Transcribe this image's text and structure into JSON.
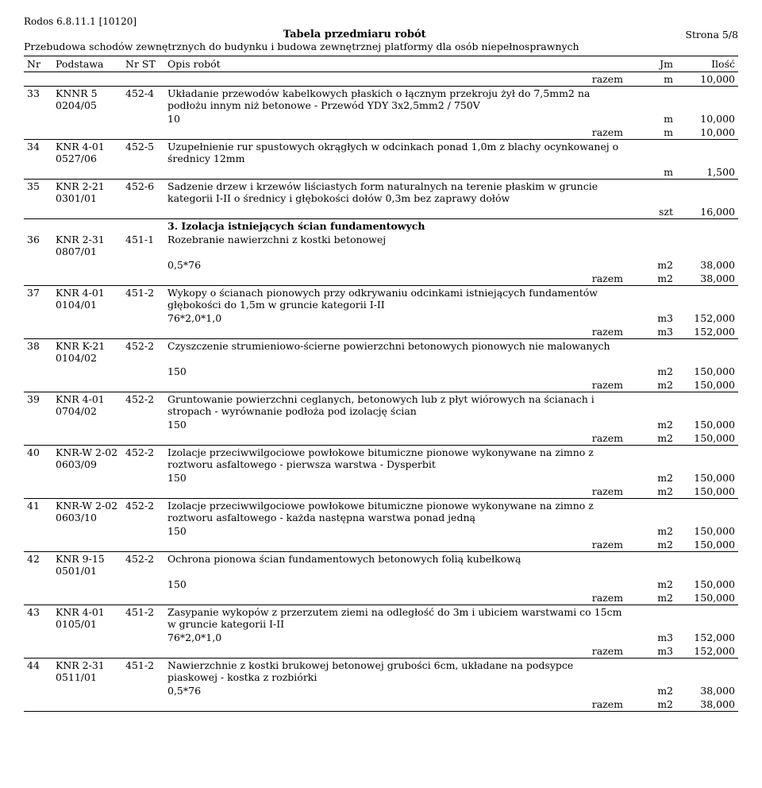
{
  "header_code": "Rodos 6.8.11.1 [10120]",
  "title": "Tabela przedmiaru robót",
  "page_label": "Strona 5/8",
  "subtitle": "Przebudowa schodów zewnętrznych do budynku i budowa zewnętrznej platformy dla osób niepełnosprawnych",
  "cols": {
    "nr": "Nr",
    "podstawa": "Podstawa",
    "st": "Nr ST",
    "opis": "Opis robót",
    "jm": "Jm",
    "ilosc": "Ilość"
  },
  "razem_label": "razem",
  "leading_razem": {
    "jm": "m",
    "qty": "10,000"
  },
  "rows": [
    {
      "nr": "33",
      "pod1": "KNNR 5",
      "pod2": "0204/05",
      "st": "452-4",
      "opis": "Układanie przewodów kabelkowych płaskich o łącznym przekroju żył do 7,5mm2 na podłożu innym niż betonowe - Przewód YDY 3x2,5mm2 / 750V",
      "calc": "10",
      "calc_jm": "m",
      "calc_qty": "10,000",
      "razem_jm": "m",
      "razem_qty": "10,000"
    },
    {
      "nr": "34",
      "pod1": "KNR 4-01",
      "pod2": "0527/06",
      "st": "452-5",
      "opis": "Uzupełnienie rur spustowych okrągłych w odcinkach ponad 1,0m z blachy ocynkowanej o średnicy 12mm",
      "only_jm": "m",
      "only_qty": "1,500"
    },
    {
      "nr": "35",
      "pod1": "KNR 2-21",
      "pod2": "0301/01",
      "st": "452-6",
      "opis": "Sadzenie drzew i krzewów liściastych form naturalnych na terenie płaskim w gruncie kategorii I-II o średnicy i głębokości dołów 0,3m bez zaprawy dołów",
      "only_jm": "szt",
      "only_qty": "16,000",
      "section_after": "3. Izolacja istniejących ścian fundamentowych"
    },
    {
      "nr": "36",
      "pod1": "KNR 2-31",
      "pod2": "0807/01",
      "st": "451-1",
      "opis": "Rozebranie nawierzchni z kostki betonowej",
      "calc": "0,5*76",
      "calc_jm": "m2",
      "calc_qty": "38,000",
      "razem_jm": "m2",
      "razem_qty": "38,000"
    },
    {
      "nr": "37",
      "pod1": "KNR 4-01",
      "pod2": "0104/01",
      "st": "451-2",
      "opis": "Wykopy o ścianach pionowych przy odkrywaniu odcinkami istniejących fundamentów głębokości do 1,5m w gruncie kategorii I-II",
      "calc": "76*2,0*1,0",
      "calc_jm": "m3",
      "calc_qty": "152,000",
      "razem_jm": "m3",
      "razem_qty": "152,000"
    },
    {
      "nr": "38",
      "pod1": "KNR K-21",
      "pod2": "0104/02",
      "st": "452-2",
      "opis": "Czyszczenie strumieniowo-ścierne powierzchni betonowych pionowych nie malowanych",
      "calc": "150",
      "calc_jm": "m2",
      "calc_qty": "150,000",
      "razem_jm": "m2",
      "razem_qty": "150,000"
    },
    {
      "nr": "39",
      "pod1": "KNR 4-01",
      "pod2": "0704/02",
      "st": "452-2",
      "opis": "Gruntowanie powierzchni ceglanych, betonowych lub z płyt wiórowych na ścianach i stropach - wyrównanie podłoża pod izolację ścian",
      "calc": "150",
      "calc_jm": "m2",
      "calc_qty": "150,000",
      "razem_jm": "m2",
      "razem_qty": "150,000"
    },
    {
      "nr": "40",
      "pod1": "KNR-W 2-02",
      "pod2": "0603/09",
      "st": "452-2",
      "opis": "Izolacje przeciwwilgociowe powłokowe bitumiczne pionowe wykonywane na zimno z roztworu asfaltowego - pierwsza warstwa - Dysperbit",
      "calc": "150",
      "calc_jm": "m2",
      "calc_qty": "150,000",
      "razem_jm": "m2",
      "razem_qty": "150,000"
    },
    {
      "nr": "41",
      "pod1": "KNR-W 2-02",
      "pod2": "0603/10",
      "st": "452-2",
      "opis": "Izolacje przeciwwilgociowe powłokowe bitumiczne pionowe wykonywane na zimno z roztworu asfaltowego - każda następna warstwa ponad jedną",
      "calc": "150",
      "calc_jm": "m2",
      "calc_qty": "150,000",
      "razem_jm": "m2",
      "razem_qty": "150,000"
    },
    {
      "nr": "42",
      "pod1": "KNR 9-15",
      "pod2": "0501/01",
      "st": "452-2",
      "opis": "Ochrona pionowa ścian fundamentowych betonowych folią kubełkową",
      "calc": "150",
      "calc_jm": "m2",
      "calc_qty": "150,000",
      "razem_jm": "m2",
      "razem_qty": "150,000"
    },
    {
      "nr": "43",
      "pod1": "KNR 4-01",
      "pod2": "0105/01",
      "st": "451-2",
      "opis": "Zasypanie wykopów z przerzutem ziemi na odległość do 3m i ubiciem warstwami co 15cm w gruncie kategorii I-II",
      "calc": "76*2,0*1,0",
      "calc_jm": "m3",
      "calc_qty": "152,000",
      "razem_jm": "m3",
      "razem_qty": "152,000"
    },
    {
      "nr": "44",
      "pod1": "KNR 2-31",
      "pod2": "0511/01",
      "st": "451-2",
      "opis": "Nawierzchnie z kostki brukowej betonowej grubości 6cm, układane na podsypce piaskowej - kostka z rozbiórki",
      "calc": "0,5*76",
      "calc_jm": "m2",
      "calc_qty": "38,000",
      "razem_jm": "m2",
      "razem_qty": "38,000"
    }
  ]
}
